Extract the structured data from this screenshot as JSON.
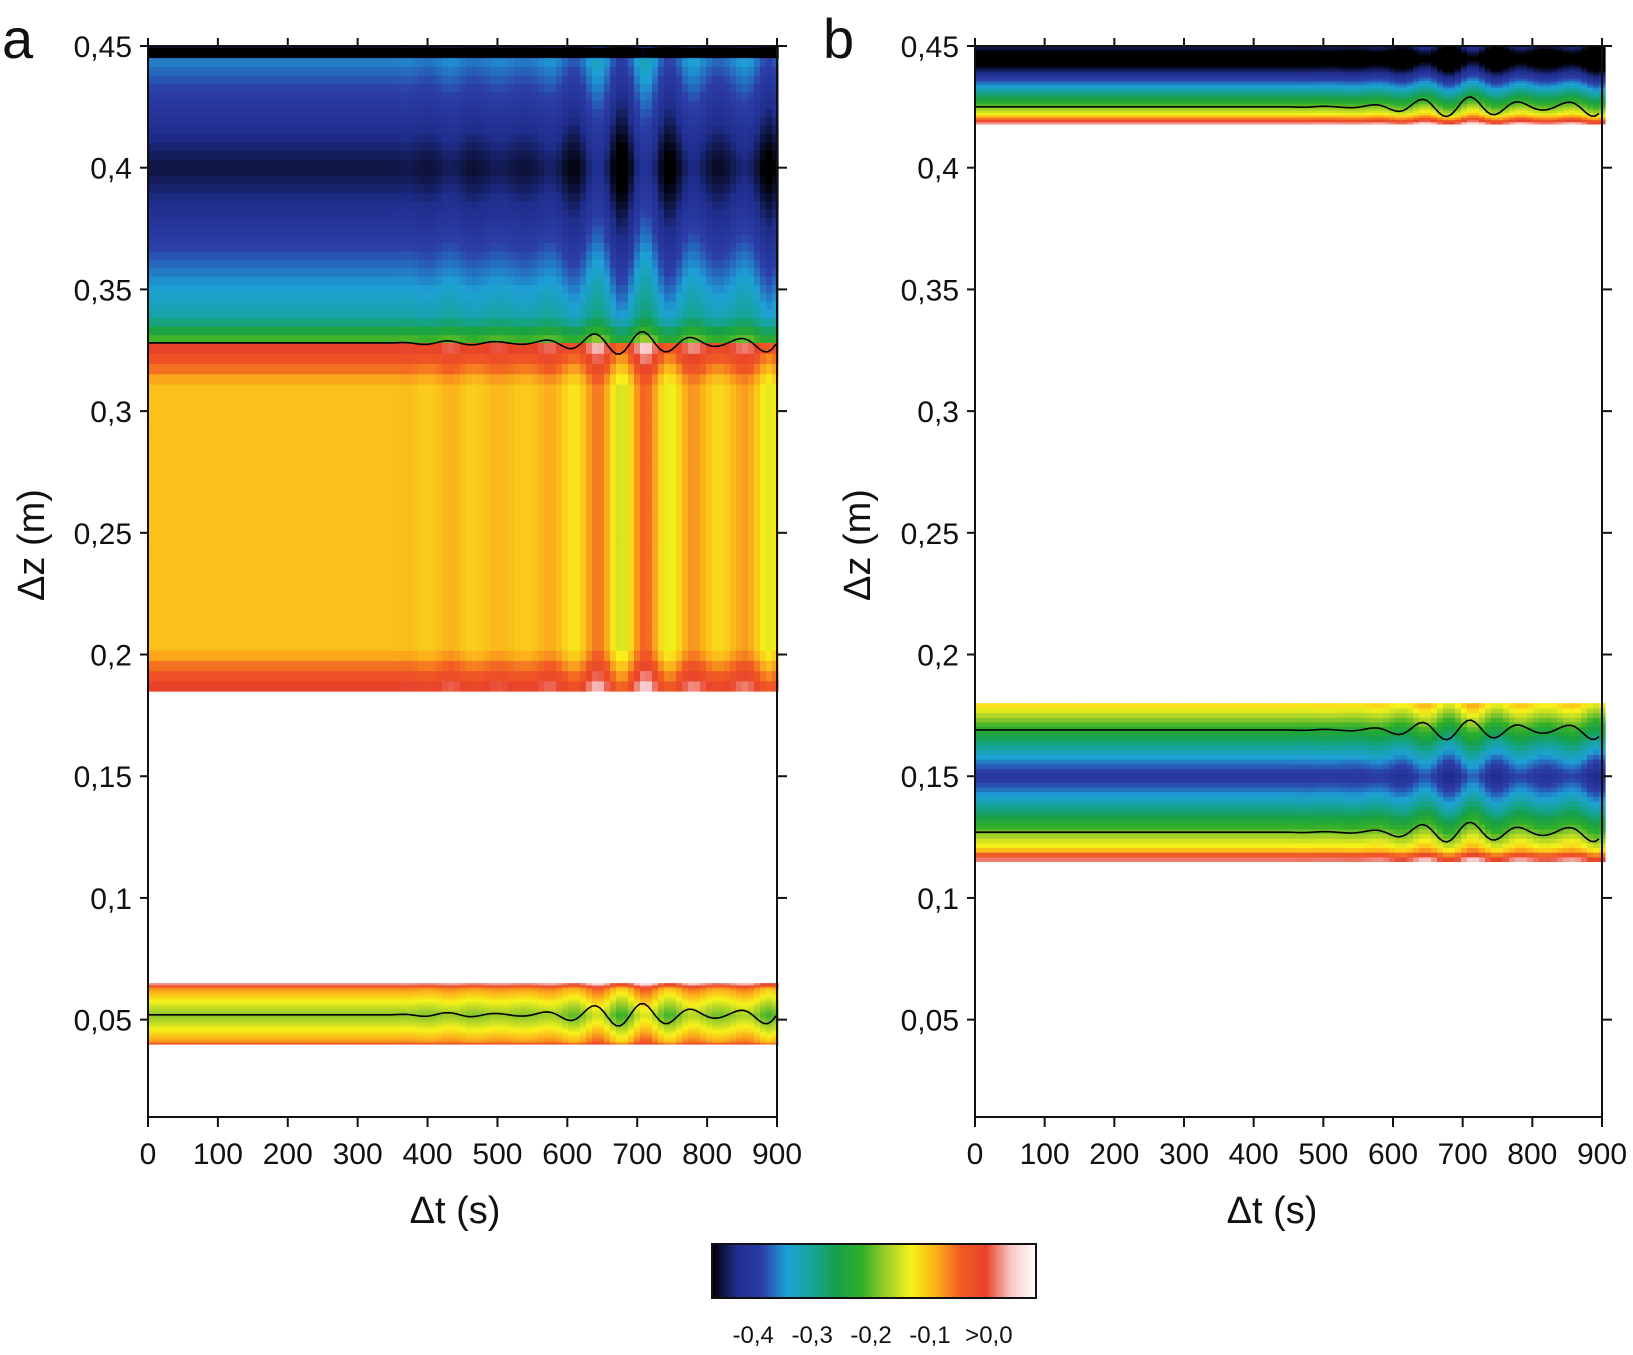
{
  "chart_data": [
    {
      "type": "heatmap",
      "panel_label": "a",
      "xlabel": "Δt (s)",
      "ylabel": "Δz (m)",
      "xlim": [
        0,
        900
      ],
      "ylim": [
        0.01,
        0.45
      ],
      "xticks": [
        "0",
        "100",
        "200",
        "300",
        "400",
        "500",
        "600",
        "700",
        "800",
        "900"
      ],
      "yticks": [
        "0,05",
        "0,1",
        "0,15",
        "0,2",
        "0,25",
        "0,3",
        "0,35",
        "0,4",
        "0,45"
      ],
      "bands": [
        {
          "name": "top",
          "z_from": 0.445,
          "z_to": 0.45,
          "level": -0.5
        },
        {
          "name": "upper-negative",
          "z_from": 0.328,
          "z_to": 0.445,
          "core_z": 0.4,
          "core_level": -0.45,
          "edge_level": -0.28
        },
        {
          "name": "middle-positive",
          "z_from": 0.185,
          "z_to": 0.328,
          "level": -0.1
        },
        {
          "name": "lower",
          "z_from": 0.04,
          "z_to": 0.065,
          "core_z": 0.052,
          "core_level": -0.18
        },
        {
          "name": "contour",
          "z": 0.328,
          "level": -0.2
        },
        {
          "name": "contour",
          "z": 0.052,
          "level": -0.2
        }
      ],
      "oscillation_onset_s": 350
    },
    {
      "type": "heatmap",
      "panel_label": "b",
      "xlabel": "Δt (s)",
      "ylabel": "Δz (m)",
      "xlim": [
        0,
        900
      ],
      "ylim": [
        0.01,
        0.45
      ],
      "xticks": [
        "0",
        "100",
        "200",
        "300",
        "400",
        "500",
        "600",
        "700",
        "800",
        "900"
      ],
      "yticks": [
        "0,05",
        "0,1",
        "0,15",
        "0,2",
        "0,25",
        "0,3",
        "0,35",
        "0,4",
        "0,45"
      ],
      "bands": [
        {
          "name": "top",
          "z_from": 0.418,
          "z_to": 0.45,
          "core_z": 0.445,
          "core_level": -0.5
        },
        {
          "name": "middle",
          "z_from": 0.115,
          "z_to": 0.18,
          "core_z": 0.15,
          "core_level": -0.4
        },
        {
          "name": "contour",
          "z": 0.169,
          "level": -0.2
        },
        {
          "name": "contour",
          "z": 0.127,
          "level": -0.2
        },
        {
          "name": "contour",
          "z": 0.425,
          "level": -0.2
        }
      ],
      "oscillation_onset_s": 450
    }
  ],
  "colorbar": {
    "tick_labels": [
      "-0,4",
      "-0,3",
      "-0,2",
      "-0,1",
      ">0,0"
    ],
    "tick_values": [
      -0.4,
      -0.3,
      -0.2,
      -0.1,
      0.0
    ],
    "range": [
      -0.47,
      0.08
    ],
    "colors": [
      "#000000",
      "#1f2d8c",
      "#2c3ea8",
      "#1ea0d6",
      "#16a49a",
      "#17a04a",
      "#2fae2a",
      "#9fce2a",
      "#f7f21a",
      "#fbb01a",
      "#f15a24",
      "#e8432a",
      "#f8c8c8",
      "#ffffff"
    ]
  }
}
